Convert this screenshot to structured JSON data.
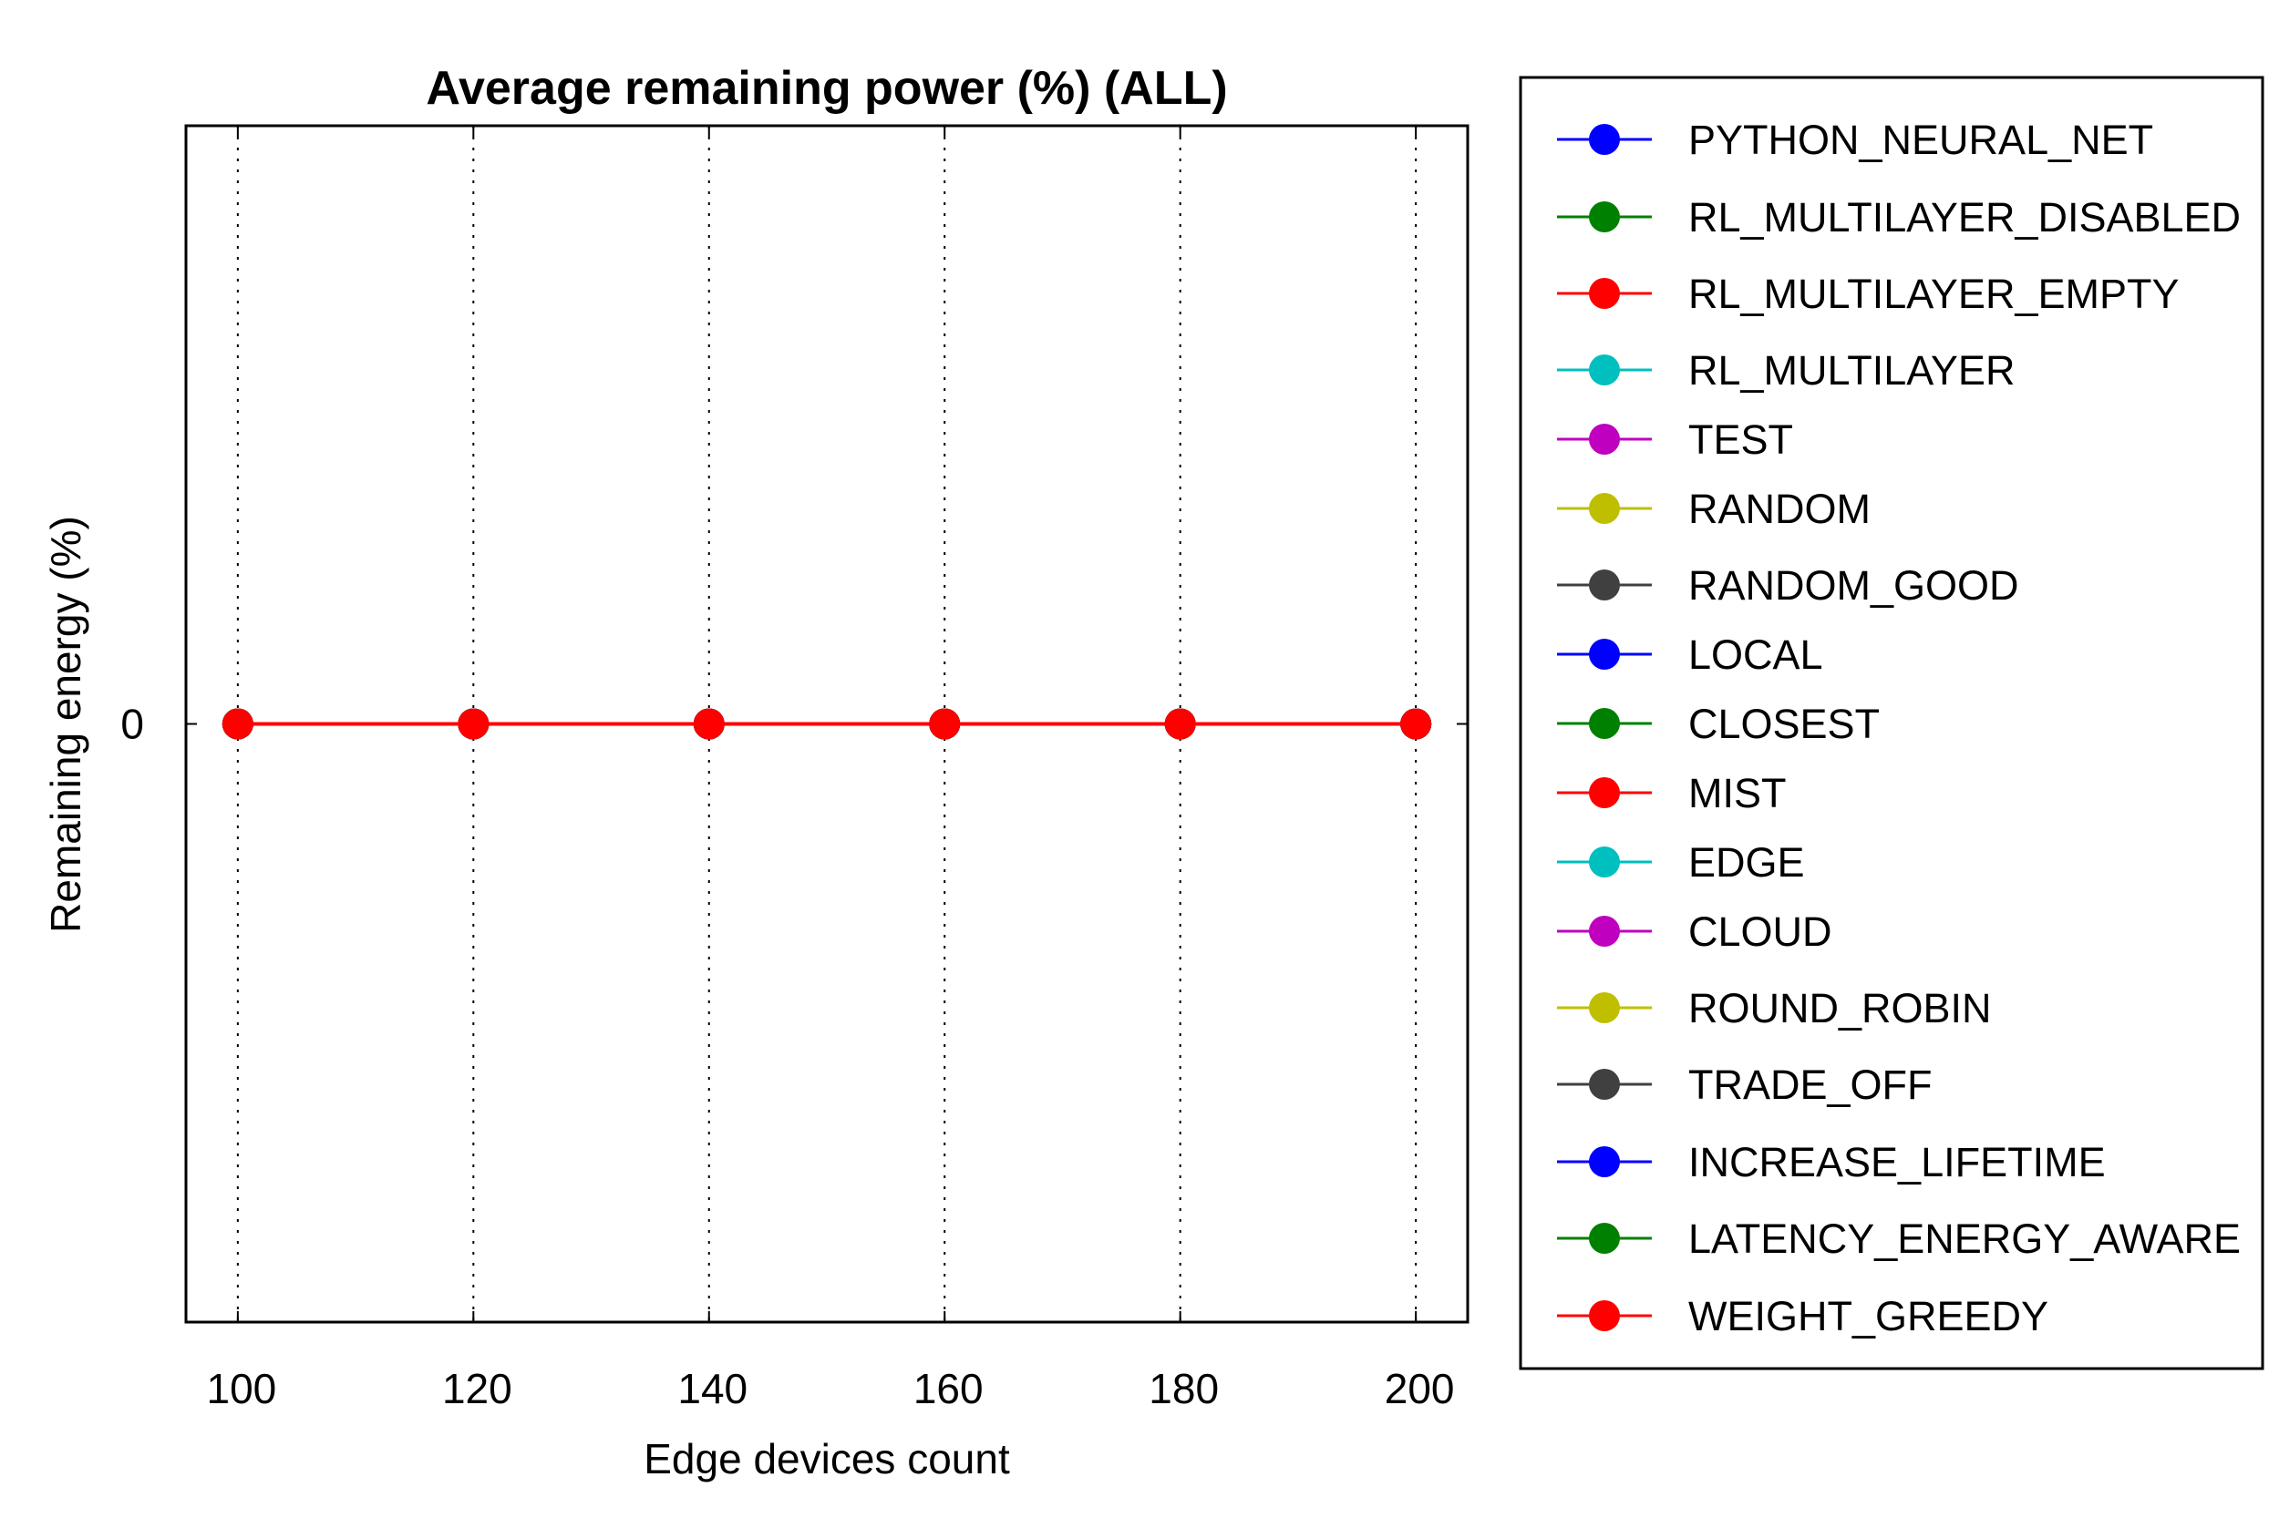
{
  "chart_data": {
    "type": "line",
    "title": "Average remaining power (%) (ALL)",
    "xlabel": "Edge devices count",
    "ylabel": "Remaining energy (%)",
    "x": [
      100,
      120,
      140,
      160,
      180,
      200
    ],
    "xlim": [
      95.6,
      204.4
    ],
    "ylim": [
      -1,
      1
    ],
    "xticks": [
      100,
      120,
      140,
      160,
      180,
      200
    ],
    "yticks": [
      0
    ],
    "grid": "vertical dotted",
    "legend_position": "right",
    "series": [
      {
        "name": "PYTHON_NEURAL_NET",
        "color": "#0000ff",
        "values": [
          0,
          0,
          0,
          0,
          0,
          0
        ]
      },
      {
        "name": "RL_MULTILAYER_DISABLED",
        "color": "#008000",
        "values": [
          0,
          0,
          0,
          0,
          0,
          0
        ]
      },
      {
        "name": "RL_MULTILAYER_EMPTY",
        "color": "#ff0000",
        "values": [
          0,
          0,
          0,
          0,
          0,
          0
        ]
      },
      {
        "name": "RL_MULTILAYER",
        "color": "#00bfbf",
        "values": [
          0,
          0,
          0,
          0,
          0,
          0
        ]
      },
      {
        "name": "TEST",
        "color": "#bf00bf",
        "values": [
          0,
          0,
          0,
          0,
          0,
          0
        ]
      },
      {
        "name": "RANDOM",
        "color": "#bfbf00",
        "values": [
          0,
          0,
          0,
          0,
          0,
          0
        ]
      },
      {
        "name": "RANDOM_GOOD",
        "color": "#404040",
        "values": [
          0,
          0,
          0,
          0,
          0,
          0
        ]
      },
      {
        "name": "LOCAL",
        "color": "#0000ff",
        "values": [
          0,
          0,
          0,
          0,
          0,
          0
        ]
      },
      {
        "name": "CLOSEST",
        "color": "#008000",
        "values": [
          0,
          0,
          0,
          0,
          0,
          0
        ]
      },
      {
        "name": "MIST",
        "color": "#ff0000",
        "values": [
          0,
          0,
          0,
          0,
          0,
          0
        ]
      },
      {
        "name": "EDGE",
        "color": "#00bfbf",
        "values": [
          0,
          0,
          0,
          0,
          0,
          0
        ]
      },
      {
        "name": "CLOUD",
        "color": "#bf00bf",
        "values": [
          0,
          0,
          0,
          0,
          0,
          0
        ]
      },
      {
        "name": "ROUND_ROBIN",
        "color": "#bfbf00",
        "values": [
          0,
          0,
          0,
          0,
          0,
          0
        ]
      },
      {
        "name": "TRADE_OFF",
        "color": "#404040",
        "values": [
          0,
          0,
          0,
          0,
          0,
          0
        ]
      },
      {
        "name": "INCREASE_LIFETIME",
        "color": "#0000ff",
        "values": [
          0,
          0,
          0,
          0,
          0,
          0
        ]
      },
      {
        "name": "LATENCY_ENERGY_AWARE",
        "color": "#008000",
        "values": [
          0,
          0,
          0,
          0,
          0,
          0
        ]
      },
      {
        "name": "WEIGHT_GREEDY",
        "color": "#ff0000",
        "values": [
          0,
          0,
          0,
          0,
          0,
          0
        ]
      }
    ]
  }
}
